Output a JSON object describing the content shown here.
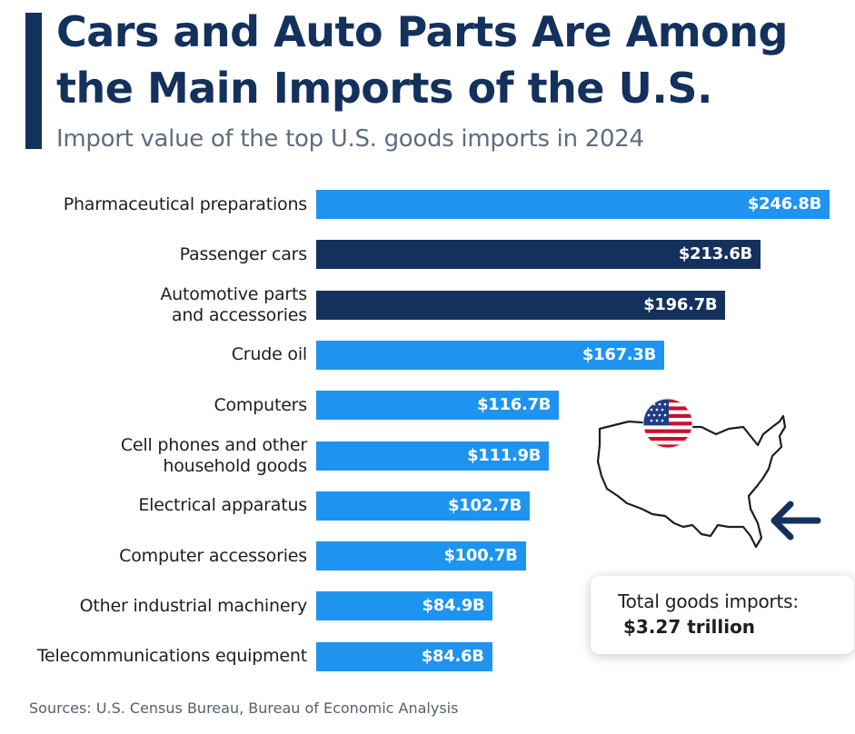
{
  "header": {
    "title": "Cars and Auto Parts Are Among the Main Imports of the U.S.",
    "subtitle": "Import value of the top U.S. goods imports in 2024"
  },
  "colors": {
    "accent": "#13315c",
    "bar_light": "#1e94f0",
    "bar_dark": "#13315c"
  },
  "chart_data": {
    "type": "bar",
    "orientation": "horizontal",
    "title": "Cars and Auto Parts Are Among the Main Imports of the U.S.",
    "subtitle": "Import value of the top U.S. goods imports in 2024",
    "categories": [
      [
        "Pharmaceutical preparations"
      ],
      [
        "Passenger cars"
      ],
      [
        "Automotive parts",
        "and accessories"
      ],
      [
        "Crude oil"
      ],
      [
        "Computers"
      ],
      [
        "Cell phones and other",
        "household goods"
      ],
      [
        "Electrical apparatus"
      ],
      [
        "Computer accessories"
      ],
      [
        "Other industrial machinery"
      ],
      [
        "Telecommunications equipment"
      ]
    ],
    "values": [
      246.8,
      213.6,
      196.7,
      167.3,
      116.7,
      111.9,
      102.7,
      100.7,
      84.9,
      84.6
    ],
    "value_labels": [
      "$246.8B",
      "$213.6B",
      "$196.7B",
      "$167.3B",
      "$116.7B",
      "$111.9B",
      "$102.7B",
      "$100.7B",
      "$84.9B",
      "$84.6B"
    ],
    "highlight": [
      false,
      true,
      true,
      false,
      false,
      false,
      false,
      false,
      false,
      false
    ],
    "xlim": [
      0,
      246.8
    ],
    "grid": false,
    "legend": "none"
  },
  "callout": {
    "label": "Total goods imports:",
    "value": "$3.27 trillion"
  },
  "icons": [
    "us-flag-icon",
    "us-map-outline",
    "arrow-left-icon"
  ],
  "footer": {
    "source": "Sources: U.S. Census Bureau, Bureau of Economic Analysis"
  }
}
